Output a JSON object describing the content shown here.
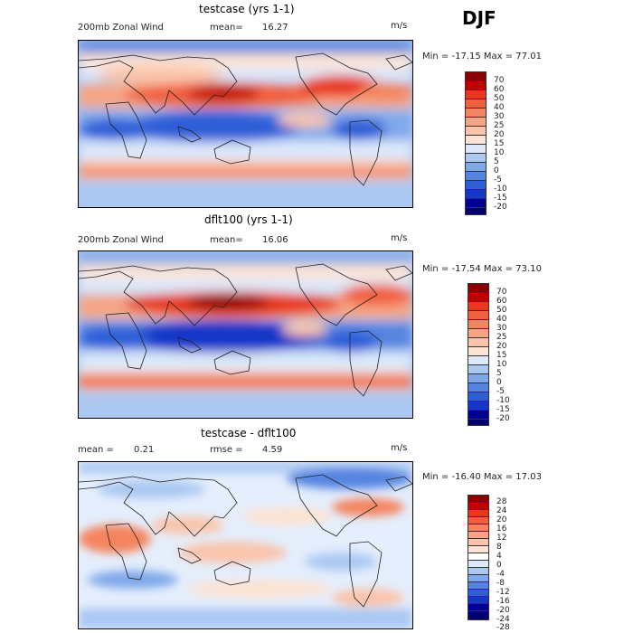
{
  "season": "DJF",
  "panels": [
    {
      "title": "testcase (yrs 1-1)",
      "var_label": "200mb Zonal Wind",
      "stat1_label": "mean=",
      "stat1_value": "16.27",
      "units": "m/s",
      "minmax": "Min = -17.15 Max =  77.01",
      "colorbar": {
        "levels": [
          "70",
          "60",
          "50",
          "40",
          "30",
          "25",
          "20",
          "15",
          "10",
          "5",
          "0",
          "-5",
          "-10",
          "-15",
          "-20"
        ],
        "colors": [
          "#8b0000",
          "#c00000",
          "#e8391e",
          "#f0603c",
          "#f4845f",
          "#f7a484",
          "#fac4aa",
          "#fde3d3",
          "#dce9fb",
          "#aac8f2",
          "#7fa8ea",
          "#5584e0",
          "#2f5fd8",
          "#1437c8",
          "#000090"
        ]
      }
    },
    {
      "title": "dflt100 (yrs 1-1)",
      "var_label": "200mb Zonal Wind",
      "stat1_label": "mean=",
      "stat1_value": "16.06",
      "units": "m/s",
      "minmax": "Min = -17.54 Max =  73.10",
      "colorbar": {
        "levels": [
          "70",
          "60",
          "50",
          "40",
          "30",
          "25",
          "20",
          "15",
          "10",
          "5",
          "0",
          "-5",
          "-10",
          "-15",
          "-20"
        ],
        "colors": [
          "#8b0000",
          "#c00000",
          "#e8391e",
          "#f0603c",
          "#f4845f",
          "#f7a484",
          "#fac4aa",
          "#fde3d3",
          "#dce9fb",
          "#aac8f2",
          "#7fa8ea",
          "#5584e0",
          "#2f5fd8",
          "#1437c8",
          "#000090"
        ]
      }
    },
    {
      "title": "testcase - dflt100",
      "stat1_label": "mean =",
      "stat1_value": "0.21",
      "stat2_label": "rmse =",
      "stat2_value": "4.59",
      "units": "m/s",
      "minmax": "Min = -16.40 Max =  17.03",
      "colorbar": {
        "levels": [
          "28",
          "24",
          "20",
          "16",
          "12",
          "8",
          "4",
          "0",
          "-4",
          "-8",
          "-12",
          "-16",
          "-20",
          "-24",
          "-28"
        ],
        "colors": [
          "#8b0000",
          "#c00000",
          "#e8391e",
          "#f0603c",
          "#f4845f",
          "#f7a484",
          "#fac4aa",
          "#fde3d3",
          "#ffffff",
          "#dce9fb",
          "#aac8f2",
          "#7fa8ea",
          "#5584e0",
          "#2f5fd8",
          "#1437c8",
          "#000090"
        ]
      }
    }
  ]
}
